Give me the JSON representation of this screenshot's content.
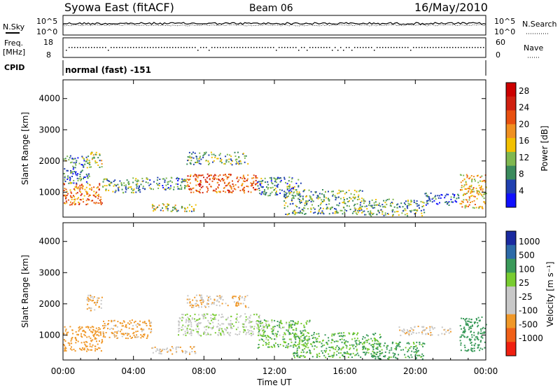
{
  "header": {
    "title": "Syowa East (fitACF)",
    "beam": "Beam 06",
    "date": "16/May/2010"
  },
  "nsky_panel": {
    "left_label": "N.Sky",
    "right_label": "N.Search",
    "left_ticks": [
      "10^5",
      "10^0"
    ],
    "right_ticks": [
      "10^5",
      "10^0"
    ]
  },
  "freq_panel": {
    "left_label_line1": "Freq.",
    "left_label_line2": "[MHz]",
    "right_label": "Nave",
    "left_ticks": [
      "18",
      "8"
    ],
    "right_ticks": [
      "60",
      "0"
    ]
  },
  "cpid": {
    "label": "CPID",
    "value": "normal (fast) -151"
  },
  "x_axis": {
    "label": "Time UT",
    "ticks": [
      "00:00",
      "04:00",
      "08:00",
      "12:00",
      "16:00",
      "20:00",
      "00:00"
    ]
  },
  "colors": {
    "power_scale": [
      "#1010ff",
      "#2040b0",
      "#3a8a5c",
      "#7fb850",
      "#f2c000",
      "#f09020",
      "#e85010",
      "#d02010",
      "#cc0000"
    ],
    "velocity_scale": [
      "#f02010",
      "#f06018",
      "#f09828",
      "#c8c8c8",
      "#c8c8c8",
      "#78cc30",
      "#3a9a5a",
      "#2c6aa8",
      "#1a2aa0"
    ]
  },
  "chart_data": [
    {
      "type": "heatmap",
      "title": "",
      "xlabel": "Time UT",
      "ylabel": "Slant Range [km]",
      "xlim": [
        "00:00",
        "24:00"
      ],
      "ylim": [
        200,
        4600
      ],
      "yticks": [
        1000,
        2000,
        3000,
        4000
      ],
      "colorbar": {
        "label": "Power [dB]",
        "range": [
          0,
          30
        ],
        "ticks": [
          4,
          8,
          12,
          16,
          20,
          24,
          28
        ]
      },
      "regions": [
        {
          "time": [
            0.0,
            2.2
          ],
          "range": [
            600,
            1300
          ],
          "value": 20
        },
        {
          "time": [
            0.0,
            1.5
          ],
          "range": [
            1300,
            2200
          ],
          "value": 8
        },
        {
          "time": [
            1.3,
            2.2
          ],
          "range": [
            1800,
            2300
          ],
          "value": 12
        },
        {
          "time": [
            2.2,
            4.5
          ],
          "range": [
            1000,
            1500
          ],
          "value": 10
        },
        {
          "time": [
            4.5,
            7.0
          ],
          "range": [
            1100,
            1500
          ],
          "value": 8
        },
        {
          "time": [
            5.0,
            7.5
          ],
          "range": [
            400,
            650
          ],
          "value": 12
        },
        {
          "time": [
            7.0,
            11.0
          ],
          "range": [
            1000,
            1600
          ],
          "value": 22
        },
        {
          "time": [
            7.0,
            10.5
          ],
          "range": [
            1900,
            2300
          ],
          "value": 10
        },
        {
          "time": [
            11.0,
            13.5
          ],
          "range": [
            900,
            1500
          ],
          "value": 8
        },
        {
          "time": [
            12.5,
            17.0
          ],
          "range": [
            300,
            1100
          ],
          "value": 10
        },
        {
          "time": [
            17.0,
            20.5
          ],
          "range": [
            250,
            800
          ],
          "value": 10
        },
        {
          "time": [
            20.5,
            22.5
          ],
          "range": [
            600,
            1000
          ],
          "value": 6
        },
        {
          "time": [
            22.5,
            24.0
          ],
          "range": [
            500,
            1600
          ],
          "value": 16
        }
      ]
    },
    {
      "type": "heatmap",
      "title": "",
      "xlabel": "Time UT",
      "ylabel": "Slant Range [km]",
      "xlim": [
        "00:00",
        "24:00"
      ],
      "ylim": [
        200,
        4600
      ],
      "yticks": [
        1000,
        2000,
        3000,
        4000
      ],
      "colorbar": {
        "label": "Velocity [m s^-1]",
        "ticks": [
          1000,
          500,
          100,
          25,
          -25,
          -100,
          -500,
          -1000
        ]
      },
      "regions": [
        {
          "time": [
            0.0,
            2.2
          ],
          "range": [
            500,
            1300
          ],
          "value": -300
        },
        {
          "time": [
            1.3,
            2.2
          ],
          "range": [
            1800,
            2300
          ],
          "value": -100
        },
        {
          "time": [
            2.2,
            5.0
          ],
          "range": [
            900,
            1500
          ],
          "value": -150
        },
        {
          "time": [
            5.0,
            7.5
          ],
          "range": [
            400,
            650
          ],
          "value": -80
        },
        {
          "time": [
            6.5,
            11.5
          ],
          "range": [
            1000,
            1700
          ],
          "value": 0
        },
        {
          "time": [
            7.0,
            10.5
          ],
          "range": [
            1900,
            2300
          ],
          "value": -100
        },
        {
          "time": [
            11.0,
            14.0
          ],
          "range": [
            600,
            1500
          ],
          "value": 80
        },
        {
          "time": [
            13.0,
            18.0
          ],
          "range": [
            300,
            1100
          ],
          "value": 100
        },
        {
          "time": [
            17.5,
            20.5
          ],
          "range": [
            250,
            800
          ],
          "value": 150
        },
        {
          "time": [
            19.0,
            22.0
          ],
          "range": [
            1000,
            1300
          ],
          "value": -50
        },
        {
          "time": [
            22.5,
            24.0
          ],
          "range": [
            500,
            1600
          ],
          "value": 300
        }
      ]
    }
  ]
}
